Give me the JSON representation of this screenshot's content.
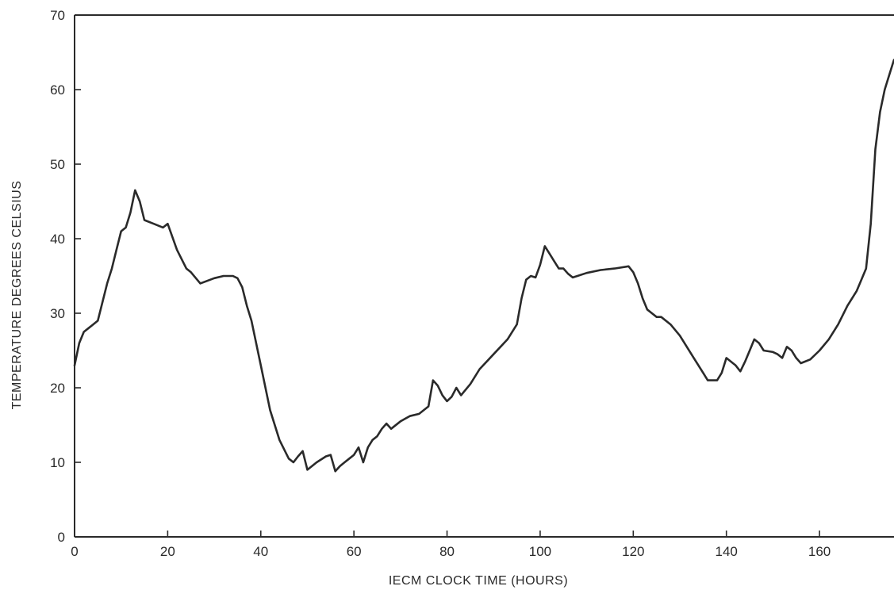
{
  "chart_data": {
    "type": "line",
    "title": "",
    "xlabel": "IECM CLOCK TIME (HOURS)",
    "ylabel": "TEMPERATURE DEGREES CELSIUS",
    "xlim": [
      0,
      176
    ],
    "ylim": [
      0,
      70
    ],
    "x_ticks": [
      0,
      20,
      40,
      60,
      80,
      100,
      120,
      140,
      160
    ],
    "y_ticks": [
      0,
      10,
      20,
      30,
      40,
      50,
      60,
      70
    ],
    "grid": false,
    "legend": "none",
    "line_color": "#2a2a2a",
    "series": [
      {
        "x": [
          0,
          1,
          2,
          3,
          4,
          5,
          6,
          7,
          8,
          9,
          10,
          11,
          12,
          13,
          14,
          15,
          17,
          19,
          20,
          22,
          24,
          25,
          27,
          30,
          32,
          34,
          35,
          36,
          37,
          38,
          40,
          42,
          44,
          46,
          47,
          48,
          49,
          50,
          51,
          52,
          54,
          55,
          56,
          57,
          58,
          59,
          60,
          61,
          62,
          63,
          64,
          65,
          66,
          67,
          68,
          70,
          72,
          74,
          76,
          77,
          78,
          79,
          80,
          81,
          82,
          83,
          85,
          87,
          90,
          93,
          95,
          96,
          97,
          98,
          99,
          100,
          101,
          102,
          103,
          104,
          105,
          106,
          107,
          108,
          110,
          113,
          116,
          119,
          120,
          121,
          122,
          123,
          124,
          125,
          126,
          128,
          130,
          133,
          135,
          136,
          137,
          138,
          139,
          140,
          141,
          142,
          143,
          144,
          145,
          146,
          147,
          148,
          150,
          151,
          152,
          153,
          154,
          155,
          156,
          158,
          160,
          162,
          164,
          166,
          168,
          169,
          170,
          171,
          172,
          173,
          174,
          175,
          176
        ],
        "y": [
          23,
          26,
          27.5,
          28,
          28.5,
          29,
          31.5,
          34,
          36,
          38.5,
          41,
          41.5,
          43.5,
          46.5,
          45,
          42.5,
          42,
          41.5,
          42,
          38.5,
          36,
          35.5,
          34,
          34.7,
          35,
          35,
          34.7,
          33.5,
          31,
          29,
          23,
          17,
          13,
          10.5,
          10,
          10.8,
          11.5,
          9,
          9.5,
          10,
          10.8,
          11,
          8.8,
          9.5,
          10,
          10.5,
          11,
          12,
          10,
          12,
          13,
          13.5,
          14.5,
          15.2,
          14.5,
          15.5,
          16.2,
          16.5,
          17.5,
          21,
          20.3,
          19,
          18.2,
          18.8,
          20,
          19,
          20.5,
          22.5,
          24.5,
          26.5,
          28.5,
          32,
          34.5,
          35,
          34.8,
          36.5,
          39,
          38,
          37,
          36,
          36,
          35.3,
          34.8,
          35,
          35.4,
          35.8,
          36,
          36.3,
          35.5,
          34,
          32,
          30.5,
          30,
          29.5,
          29.5,
          28.5,
          27,
          24,
          22,
          21,
          21,
          21,
          22,
          24,
          23.5,
          23,
          22.2,
          23.5,
          25,
          26.5,
          26,
          25,
          24.8,
          24.5,
          24,
          25.5,
          25,
          24,
          23.3,
          23.8,
          25,
          26.5,
          28.5,
          31,
          33,
          34.5,
          36,
          42,
          52,
          57,
          60,
          62,
          64
        ]
      }
    ]
  }
}
